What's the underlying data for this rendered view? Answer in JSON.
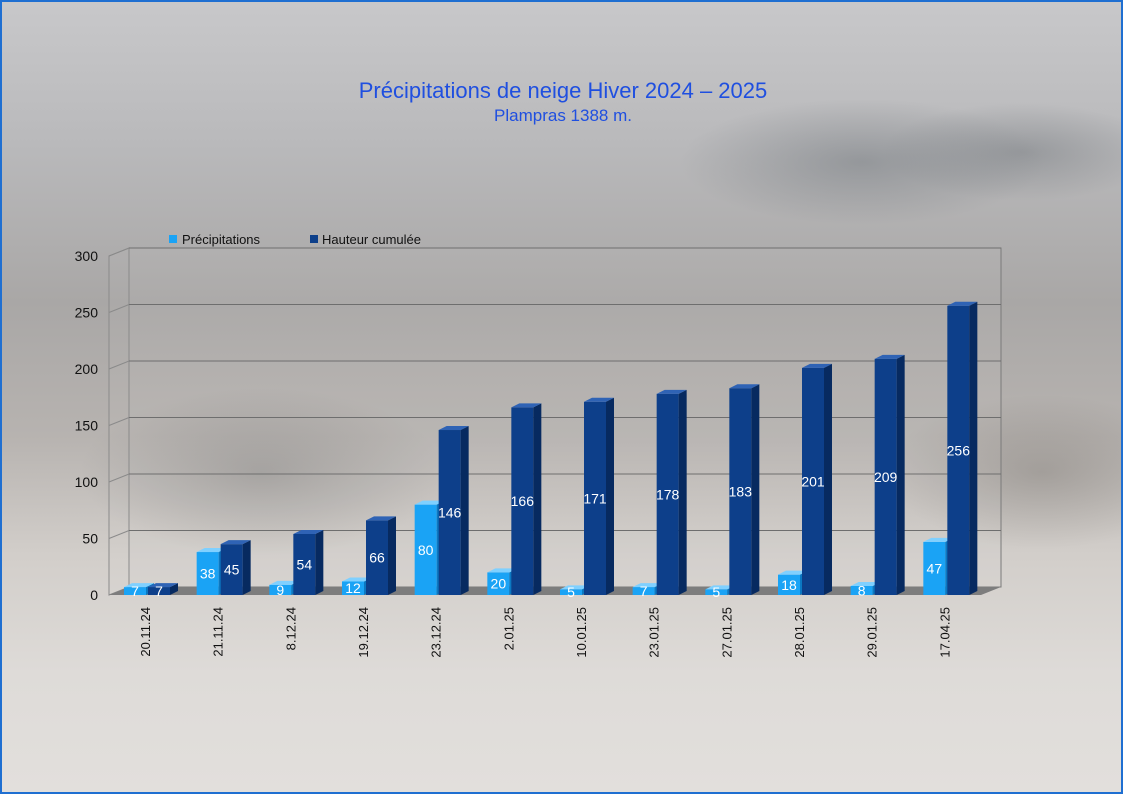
{
  "chart_data": {
    "type": "bar",
    "title": "Précipitations de neige Hiver 2024 – 2025",
    "subtitle": "Plampras 1388 m.",
    "categories": [
      "20.11.24",
      "21.11.24",
      "8.12.24",
      "19.12.24",
      "23.12.24",
      "2.01.25",
      "10.01.25",
      "23.01.25",
      "27.01.25",
      "28.01.25",
      "29.01.25",
      "17.04.25"
    ],
    "series": [
      {
        "name": "Précipitations",
        "values": [
          7,
          38,
          9,
          12,
          80,
          20,
          5,
          7,
          5,
          18,
          8,
          47
        ],
        "color": "#1aa3f5"
      },
      {
        "name": "Hauteur cumulée",
        "values": [
          7,
          45,
          54,
          66,
          146,
          166,
          171,
          178,
          183,
          201,
          209,
          256
        ],
        "color": "#0d3f8a"
      }
    ],
    "yticks": [
      "0",
      "50",
      "100",
      "150",
      "200",
      "250",
      "300"
    ],
    "ylim": [
      0,
      300
    ],
    "grid": true,
    "legend": "top-left",
    "data_labels": true
  }
}
